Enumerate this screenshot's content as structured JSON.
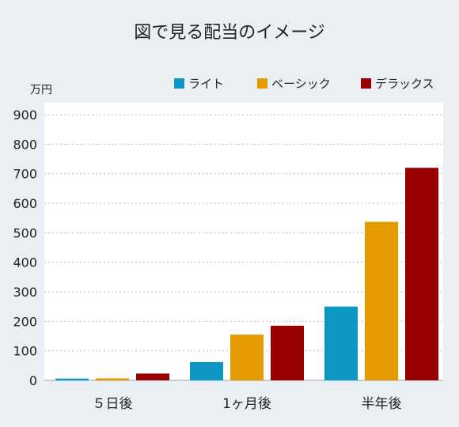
{
  "chart_data": {
    "type": "bar",
    "title": "図で見る配当のイメージ",
    "ylabel": "万円",
    "xlabel": "",
    "categories": [
      "５日後",
      "1ヶ月後",
      "半年後"
    ],
    "series": [
      {
        "name": "ライト",
        "color": "#0e97c2",
        "values": [
          6,
          62,
          250
        ]
      },
      {
        "name": "ベーシック",
        "color": "#e59b00",
        "values": [
          7,
          155,
          537
        ]
      },
      {
        "name": "デラックス",
        "color": "#990000",
        "values": [
          23,
          185,
          720
        ]
      }
    ],
    "ylim": [
      0,
      900
    ],
    "yticks": [
      "0",
      "100",
      "200",
      "300",
      "400",
      "500",
      "600",
      "700",
      "800",
      "900"
    ],
    "grid": true,
    "legend": "top-right"
  }
}
